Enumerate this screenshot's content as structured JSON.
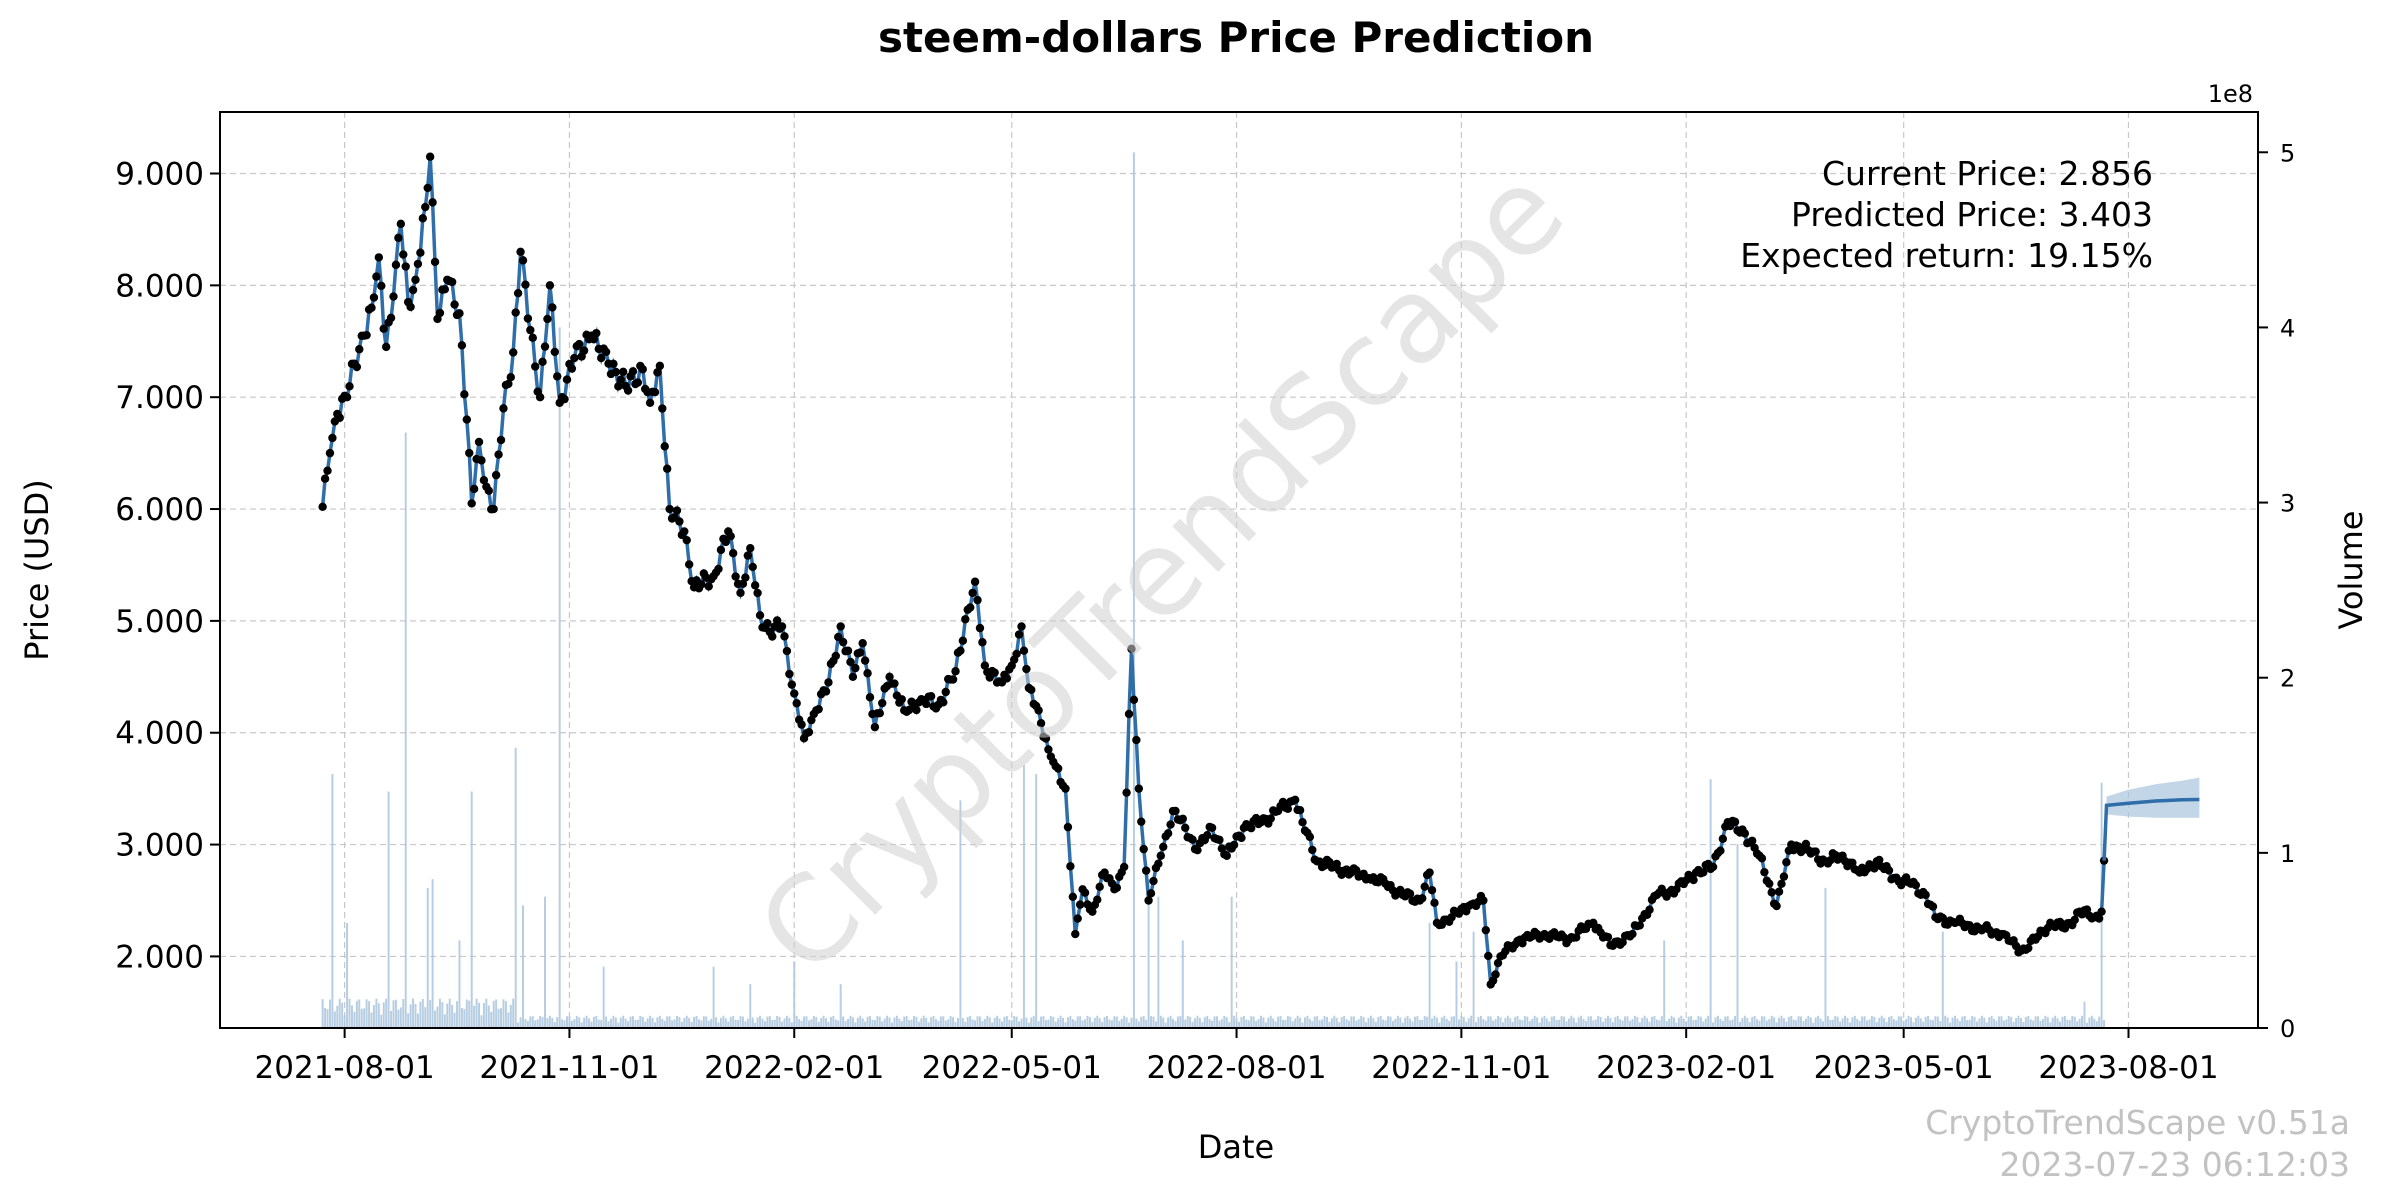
{
  "chart_data": {
    "type": "line",
    "title": "steem-dollars Price Prediction",
    "xlabel": "Date",
    "ylabel": "Price (USD)",
    "y2label": "Volume",
    "y2_exponent_label": "1e8",
    "xlim": [
      "2021-06-11",
      "2023-09-23"
    ],
    "ylim": [
      1.36,
      9.55
    ],
    "y2lim": [
      0,
      5.23
    ],
    "x_ticks": [
      "2021-08-01",
      "2021-11-01",
      "2022-02-01",
      "2022-05-01",
      "2022-08-01",
      "2022-11-01",
      "2023-02-01",
      "2023-05-01",
      "2023-08-01"
    ],
    "y_ticks": [
      2,
      3,
      4,
      5,
      6,
      7,
      8,
      9
    ],
    "y_tick_labels": [
      "2.000",
      "3.000",
      "4.000",
      "5.000",
      "6.000",
      "7.000",
      "8.000",
      "9.000"
    ],
    "y2_ticks": [
      0,
      1,
      2,
      3,
      4,
      5
    ],
    "y2_tick_labels": [
      "0",
      "1",
      "2",
      "3",
      "4",
      "5"
    ],
    "grid": true,
    "annotations": {
      "current_price": "Current Price: 2.856",
      "predicted_price": "Predicted Price: 3.403",
      "expected_return": "Expected return: 19.15%"
    },
    "watermark": "CryptoTrendScape",
    "footer": {
      "version": "CryptoTrendScape v0.51a",
      "timestamp": "2023-07-23 06:12:03"
    },
    "colors": {
      "line": "#2f6ea8",
      "points": "#000000",
      "volume": "#a9c4dd",
      "forecast_band": "#a9c4dd",
      "grid": "#c8c8c8"
    },
    "price_anchors": [
      [
        "2021-07-23",
        6.02
      ],
      [
        "2021-07-26",
        6.5
      ],
      [
        "2021-07-29",
        6.85
      ],
      [
        "2021-08-02",
        7.0
      ],
      [
        "2021-08-05",
        7.3
      ],
      [
        "2021-08-09",
        7.55
      ],
      [
        "2021-08-12",
        7.8
      ],
      [
        "2021-08-15",
        8.25
      ],
      [
        "2021-08-18",
        7.45
      ],
      [
        "2021-08-21",
        7.9
      ],
      [
        "2021-08-24",
        8.55
      ],
      [
        "2021-08-27",
        7.85
      ],
      [
        "2021-08-30",
        8.05
      ],
      [
        "2021-09-03",
        8.7
      ],
      [
        "2021-09-05",
        9.15
      ],
      [
        "2021-09-08",
        7.7
      ],
      [
        "2021-09-12",
        8.05
      ],
      [
        "2021-09-17",
        7.75
      ],
      [
        "2021-09-20",
        6.8
      ],
      [
        "2021-09-22",
        6.05
      ],
      [
        "2021-09-25",
        6.6
      ],
      [
        "2021-09-28",
        6.2
      ],
      [
        "2021-10-01",
        6.0
      ],
      [
        "2021-10-05",
        6.9
      ],
      [
        "2021-10-09",
        7.4
      ],
      [
        "2021-10-12",
        8.3
      ],
      [
        "2021-10-16",
        7.6
      ],
      [
        "2021-10-20",
        7.0
      ],
      [
        "2021-10-24",
        8.0
      ],
      [
        "2021-10-28",
        6.95
      ],
      [
        "2021-11-03",
        7.35
      ],
      [
        "2021-11-10",
        7.55
      ],
      [
        "2021-11-17",
        7.3
      ],
      [
        "2021-11-24",
        7.1
      ],
      [
        "2021-12-01",
        7.25
      ],
      [
        "2021-12-04",
        6.95
      ],
      [
        "2021-12-08",
        7.28
      ],
      [
        "2021-12-12",
        6.0
      ],
      [
        "2021-12-18",
        5.8
      ],
      [
        "2021-12-22",
        5.3
      ],
      [
        "2021-12-30",
        5.4
      ],
      [
        "2022-01-05",
        5.8
      ],
      [
        "2022-01-10",
        5.25
      ],
      [
        "2022-01-14",
        5.65
      ],
      [
        "2022-01-18",
        5.05
      ],
      [
        "2022-01-22",
        4.9
      ],
      [
        "2022-01-27",
        4.95
      ],
      [
        "2022-02-01",
        4.35
      ],
      [
        "2022-02-05",
        3.95
      ],
      [
        "2022-02-10",
        4.2
      ],
      [
        "2022-02-15",
        4.45
      ],
      [
        "2022-02-20",
        4.95
      ],
      [
        "2022-02-25",
        4.5
      ],
      [
        "2022-03-01",
        4.8
      ],
      [
        "2022-03-06",
        4.05
      ],
      [
        "2022-03-12",
        4.5
      ],
      [
        "2022-03-18",
        4.2
      ],
      [
        "2022-03-25",
        4.3
      ],
      [
        "2022-04-01",
        4.25
      ],
      [
        "2022-04-08",
        4.55
      ],
      [
        "2022-04-13",
        5.1
      ],
      [
        "2022-04-16",
        5.35
      ],
      [
        "2022-04-20",
        4.6
      ],
      [
        "2022-04-27",
        4.45
      ],
      [
        "2022-05-01",
        4.6
      ],
      [
        "2022-05-05",
        4.95
      ],
      [
        "2022-05-08",
        4.4
      ],
      [
        "2022-05-12",
        4.2
      ],
      [
        "2022-05-16",
        3.85
      ],
      [
        "2022-05-19",
        3.7
      ],
      [
        "2022-05-23",
        3.5
      ],
      [
        "2022-05-27",
        2.2
      ],
      [
        "2022-05-30",
        2.6
      ],
      [
        "2022-06-03",
        2.4
      ],
      [
        "2022-06-08",
        2.75
      ],
      [
        "2022-06-12",
        2.6
      ],
      [
        "2022-06-16",
        2.8
      ],
      [
        "2022-06-19",
        4.75
      ],
      [
        "2022-06-22",
        3.5
      ],
      [
        "2022-06-26",
        2.5
      ],
      [
        "2022-07-01",
        2.9
      ],
      [
        "2022-07-06",
        3.3
      ],
      [
        "2022-07-11",
        3.15
      ],
      [
        "2022-07-16",
        2.95
      ],
      [
        "2022-07-22",
        3.15
      ],
      [
        "2022-07-28",
        2.9
      ],
      [
        "2022-08-04",
        3.15
      ],
      [
        "2022-08-11",
        3.2
      ],
      [
        "2022-08-18",
        3.3
      ],
      [
        "2022-08-25",
        3.4
      ],
      [
        "2022-08-28",
        3.2
      ],
      [
        "2022-09-03",
        2.85
      ],
      [
        "2022-09-10",
        2.8
      ],
      [
        "2022-09-17",
        2.75
      ],
      [
        "2022-09-24",
        2.7
      ],
      [
        "2022-10-01",
        2.65
      ],
      [
        "2022-10-08",
        2.55
      ],
      [
        "2022-10-15",
        2.5
      ],
      [
        "2022-10-19",
        2.75
      ],
      [
        "2022-10-22",
        2.3
      ],
      [
        "2022-10-28",
        2.35
      ],
      [
        "2022-11-04",
        2.45
      ],
      [
        "2022-11-10",
        2.5
      ],
      [
        "2022-11-13",
        1.75
      ],
      [
        "2022-11-17",
        2.0
      ],
      [
        "2022-11-25",
        2.15
      ],
      [
        "2022-12-05",
        2.2
      ],
      [
        "2022-12-15",
        2.15
      ],
      [
        "2022-12-25",
        2.3
      ],
      [
        "2023-01-01",
        2.1
      ],
      [
        "2023-01-10",
        2.2
      ],
      [
        "2023-01-20",
        2.55
      ],
      [
        "2023-01-28",
        2.6
      ],
      [
        "2023-02-05",
        2.75
      ],
      [
        "2023-02-12",
        2.8
      ],
      [
        "2023-02-18",
        3.2
      ],
      [
        "2023-02-25",
        3.1
      ],
      [
        "2023-03-03",
        2.9
      ],
      [
        "2023-03-10",
        2.45
      ],
      [
        "2023-03-16",
        3.0
      ],
      [
        "2023-03-23",
        2.95
      ],
      [
        "2023-03-30",
        2.85
      ],
      [
        "2023-04-06",
        2.9
      ],
      [
        "2023-04-13",
        2.75
      ],
      [
        "2023-04-20",
        2.85
      ],
      [
        "2023-04-27",
        2.7
      ],
      [
        "2023-05-04",
        2.65
      ],
      [
        "2023-05-10",
        2.55
      ],
      [
        "2023-05-14",
        2.35
      ],
      [
        "2023-05-22",
        2.3
      ],
      [
        "2023-06-01",
        2.25
      ],
      [
        "2023-06-10",
        2.2
      ],
      [
        "2023-06-18",
        2.05
      ],
      [
        "2023-06-24",
        2.15
      ],
      [
        "2023-06-30",
        2.3
      ],
      [
        "2023-07-06",
        2.25
      ],
      [
        "2023-07-12",
        2.4
      ],
      [
        "2023-07-18",
        2.35
      ],
      [
        "2023-07-21",
        2.4
      ],
      [
        "2023-07-22",
        2.856
      ]
    ],
    "forecast": {
      "x": [
        "2023-07-23",
        "2023-08-01",
        "2023-08-12",
        "2023-08-23",
        "2023-08-30"
      ],
      "y": [
        3.35,
        3.37,
        3.39,
        3.4,
        3.403
      ],
      "lower": [
        3.27,
        3.25,
        3.24,
        3.24,
        3.24
      ],
      "upper": [
        3.43,
        3.49,
        3.54,
        3.57,
        3.6
      ]
    },
    "volume_baseline_1e8": 0.05,
    "volume_spikes_1e8": [
      [
        "2021-07-27",
        1.45
      ],
      [
        "2021-08-02",
        0.6
      ],
      [
        "2021-08-19",
        1.35
      ],
      [
        "2021-08-26",
        3.4
      ],
      [
        "2021-09-04",
        0.8
      ],
      [
        "2021-09-06",
        0.85
      ],
      [
        "2021-09-17",
        0.5
      ],
      [
        "2021-09-22",
        1.35
      ],
      [
        "2021-10-10",
        1.6
      ],
      [
        "2021-10-13",
        0.7
      ],
      [
        "2021-10-22",
        0.75
      ],
      [
        "2021-10-28",
        4.0
      ],
      [
        "2021-11-15",
        0.35
      ],
      [
        "2021-12-30",
        0.35
      ],
      [
        "2022-01-14",
        0.25
      ],
      [
        "2022-02-01",
        0.38
      ],
      [
        "2022-02-20",
        0.25
      ],
      [
        "2022-04-10",
        1.3
      ],
      [
        "2022-05-06",
        1.5
      ],
      [
        "2022-05-11",
        1.45
      ],
      [
        "2022-06-20",
        5.0
      ],
      [
        "2022-06-26",
        0.85
      ],
      [
        "2022-06-30",
        0.75
      ],
      [
        "2022-07-10",
        0.5
      ],
      [
        "2022-07-30",
        0.75
      ],
      [
        "2022-10-19",
        0.6
      ],
      [
        "2022-10-30",
        0.38
      ],
      [
        "2022-11-06",
        0.55
      ],
      [
        "2023-02-11",
        1.42
      ],
      [
        "2023-01-23",
        0.5
      ],
      [
        "2023-02-22",
        1.05
      ],
      [
        "2023-03-30",
        0.8
      ],
      [
        "2023-05-17",
        0.55
      ],
      [
        "2023-07-21",
        1.4
      ],
      [
        "2023-07-14",
        0.15
      ]
    ]
  }
}
